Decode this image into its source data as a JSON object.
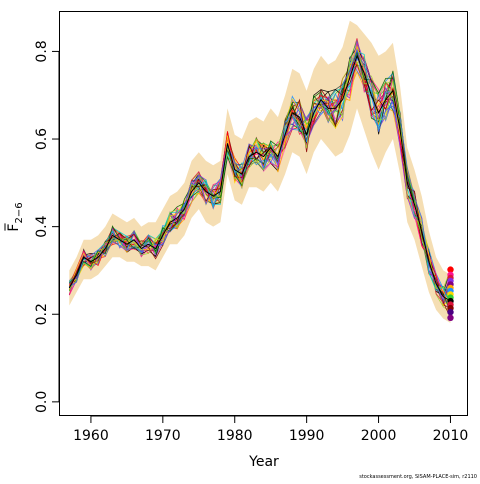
{
  "chart_data": {
    "type": "line",
    "xlabel": "Year",
    "ylabel": "F̅",
    "ylabel_subscript": "2−6",
    "xlim": [
      1955.7,
      2012.3
    ],
    "ylim": [
      -0.03,
      0.89
    ],
    "x_ticks": [
      1960,
      1970,
      1980,
      1990,
      2000,
      2010
    ],
    "x_tick_labels": [
      "1960",
      "1970",
      "1980",
      "1990",
      "2000",
      "2010"
    ],
    "y_ticks": [
      0.0,
      0.2,
      0.4,
      0.6,
      0.8
    ],
    "y_tick_labels": [
      "0.0",
      "0.2",
      "0.4",
      "0.6",
      "0.8"
    ],
    "grid": false,
    "credit": "stockassessment.org, SISAM-PLACE-sim, r2110",
    "band_color": "#f5deb3",
    "central": {
      "x": [
        1957,
        1958,
        1959,
        1960,
        1961,
        1962,
        1963,
        1964,
        1965,
        1966,
        1967,
        1968,
        1969,
        1970,
        1971,
        1972,
        1973,
        1974,
        1975,
        1976,
        1977,
        1978,
        1979,
        1980,
        1981,
        1982,
        1983,
        1984,
        1985,
        1986,
        1987,
        1988,
        1989,
        1990,
        1991,
        1992,
        1993,
        1994,
        1995,
        1996,
        1997,
        1998,
        1999,
        2000,
        2001,
        2002,
        2003,
        2004,
        2005,
        2006,
        2007,
        2008,
        2009,
        2010
      ],
      "y": [
        0.26,
        0.29,
        0.33,
        0.32,
        0.33,
        0.35,
        0.38,
        0.37,
        0.36,
        0.37,
        0.35,
        0.36,
        0.35,
        0.38,
        0.41,
        0.42,
        0.44,
        0.48,
        0.5,
        0.48,
        0.47,
        0.48,
        0.59,
        0.53,
        0.52,
        0.56,
        0.57,
        0.56,
        0.58,
        0.56,
        0.61,
        0.66,
        0.65,
        0.61,
        0.66,
        0.69,
        0.67,
        0.67,
        0.69,
        0.74,
        0.79,
        0.75,
        0.7,
        0.66,
        0.69,
        0.71,
        0.62,
        0.5,
        0.45,
        0.39,
        0.32,
        0.27,
        0.24,
        0.23
      ],
      "lower": [
        0.22,
        0.25,
        0.28,
        0.28,
        0.29,
        0.31,
        0.33,
        0.33,
        0.32,
        0.32,
        0.31,
        0.31,
        0.3,
        0.33,
        0.36,
        0.36,
        0.38,
        0.42,
        0.44,
        0.41,
        0.4,
        0.41,
        0.52,
        0.46,
        0.45,
        0.49,
        0.49,
        0.48,
        0.5,
        0.48,
        0.52,
        0.57,
        0.56,
        0.52,
        0.57,
        0.6,
        0.58,
        0.56,
        0.57,
        0.61,
        0.67,
        0.62,
        0.57,
        0.53,
        0.57,
        0.6,
        0.52,
        0.41,
        0.37,
        0.31,
        0.25,
        0.21,
        0.19,
        0.18
      ],
      "upper": [
        0.3,
        0.33,
        0.37,
        0.37,
        0.38,
        0.4,
        0.43,
        0.42,
        0.41,
        0.42,
        0.4,
        0.41,
        0.41,
        0.44,
        0.47,
        0.48,
        0.5,
        0.55,
        0.57,
        0.55,
        0.54,
        0.55,
        0.67,
        0.61,
        0.6,
        0.64,
        0.65,
        0.64,
        0.67,
        0.65,
        0.7,
        0.76,
        0.75,
        0.71,
        0.76,
        0.79,
        0.77,
        0.78,
        0.81,
        0.87,
        0.86,
        0.84,
        0.82,
        0.79,
        0.8,
        0.82,
        0.72,
        0.58,
        0.53,
        0.47,
        0.39,
        0.33,
        0.3,
        0.29
      ]
    },
    "series_colors": [
      "#000000",
      "#dc143c",
      "#ff0000",
      "#1e90ff",
      "#32cd32",
      "#ffa500",
      "#8a2be2",
      "#ff1493",
      "#00ced1",
      "#ffd700",
      "#006400",
      "#8b0000",
      "#9acd32",
      "#4169e1",
      "#ff69b4",
      "#2f4f4f"
    ],
    "end_points": [
      {
        "color": "#ff0000",
        "y": 0.302
      },
      {
        "color": "#ff1493",
        "y": 0.29
      },
      {
        "color": "#dc143c",
        "y": 0.283
      },
      {
        "color": "#8a2be2",
        "y": 0.276
      },
      {
        "color": "#800080",
        "y": 0.268
      },
      {
        "color": "#ffa500",
        "y": 0.26
      },
      {
        "color": "#1e90ff",
        "y": 0.253
      },
      {
        "color": "#ffd700",
        "y": 0.245
      },
      {
        "color": "#32cd32",
        "y": 0.238
      },
      {
        "color": "#000000",
        "y": 0.23
      },
      {
        "color": "#dc143c",
        "y": 0.222
      },
      {
        "color": "#8b0000",
        "y": 0.214
      },
      {
        "color": "#4b0082",
        "y": 0.205
      },
      {
        "color": "#800080",
        "y": 0.192
      }
    ]
  }
}
